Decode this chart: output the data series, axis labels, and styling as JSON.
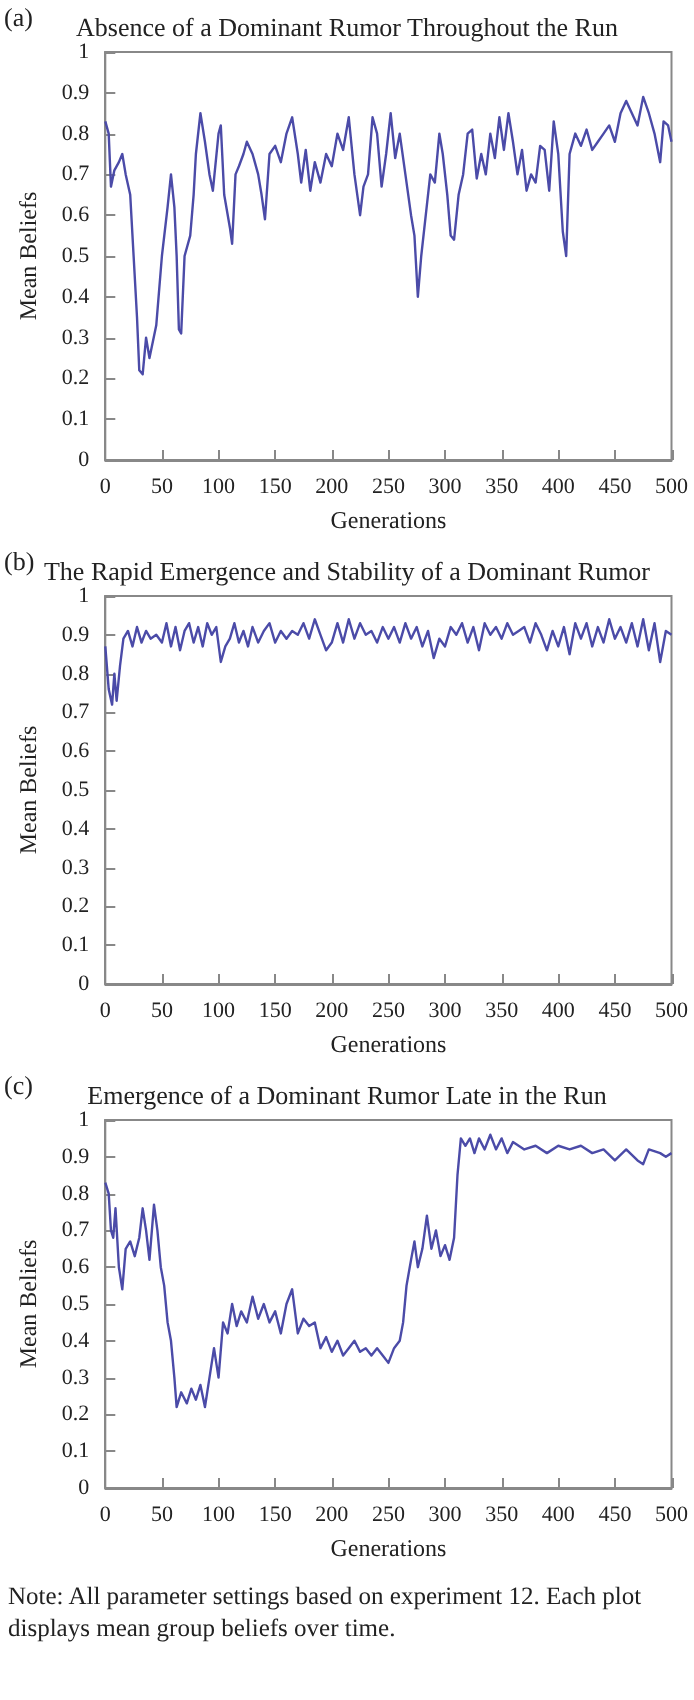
{
  "chart_data": [
    {
      "type": "line",
      "title": "Absence of a Dominant Rumor Throughout the Run",
      "xlabel": "Generations",
      "ylabel": "Mean Beliefs",
      "annotations": [
        "(a)"
      ],
      "xlim": [
        0,
        500
      ],
      "ylim": [
        0,
        1
      ],
      "xticks": [
        0,
        50,
        100,
        150,
        200,
        250,
        300,
        350,
        400,
        450,
        500
      ],
      "yticks": [
        0,
        0.1,
        0.2,
        0.3,
        0.4,
        0.5,
        0.6,
        0.7,
        0.8,
        0.9,
        1
      ],
      "grid": false,
      "series": [
        {
          "color": "#4b4ba8",
          "x": [
            0,
            3,
            5,
            8,
            12,
            15,
            18,
            22,
            25,
            28,
            30,
            33,
            36,
            39,
            45,
            50,
            55,
            58,
            61,
            63,
            65,
            67,
            70,
            75,
            78,
            80,
            84,
            88,
            92,
            95,
            100,
            102,
            105,
            110,
            112,
            115,
            118,
            122,
            125,
            130,
            135,
            138,
            141,
            145,
            150,
            155,
            160,
            165,
            170,
            173,
            177,
            181,
            185,
            190,
            195,
            200,
            205,
            210,
            215,
            220,
            225,
            228,
            232,
            236,
            240,
            244,
            248,
            252,
            256,
            260,
            265,
            270,
            273,
            276,
            279,
            283,
            287,
            291,
            295,
            298,
            302,
            305,
            308,
            312,
            316,
            320,
            324,
            328,
            332,
            336,
            340,
            344,
            348,
            352,
            356,
            360,
            364,
            368,
            372,
            376,
            380,
            384,
            388,
            392,
            396,
            400,
            404,
            407,
            410,
            415,
            420,
            425,
            430,
            435,
            440,
            445,
            450,
            455,
            460,
            465,
            470,
            475,
            480,
            485,
            490,
            493,
            497,
            500
          ],
          "values": [
            0.83,
            0.8,
            0.67,
            0.71,
            0.73,
            0.75,
            0.7,
            0.65,
            0.5,
            0.35,
            0.22,
            0.21,
            0.3,
            0.25,
            0.33,
            0.5,
            0.62,
            0.7,
            0.62,
            0.5,
            0.32,
            0.31,
            0.5,
            0.55,
            0.65,
            0.75,
            0.85,
            0.78,
            0.7,
            0.66,
            0.8,
            0.82,
            0.65,
            0.57,
            0.53,
            0.7,
            0.72,
            0.75,
            0.78,
            0.75,
            0.7,
            0.65,
            0.59,
            0.75,
            0.77,
            0.73,
            0.8,
            0.84,
            0.75,
            0.68,
            0.76,
            0.66,
            0.73,
            0.68,
            0.75,
            0.72,
            0.8,
            0.76,
            0.84,
            0.7,
            0.6,
            0.67,
            0.7,
            0.84,
            0.8,
            0.67,
            0.75,
            0.85,
            0.74,
            0.8,
            0.7,
            0.6,
            0.55,
            0.4,
            0.5,
            0.6,
            0.7,
            0.68,
            0.8,
            0.75,
            0.65,
            0.55,
            0.54,
            0.65,
            0.7,
            0.8,
            0.81,
            0.69,
            0.75,
            0.7,
            0.8,
            0.74,
            0.84,
            0.76,
            0.85,
            0.78,
            0.7,
            0.76,
            0.66,
            0.7,
            0.68,
            0.77,
            0.76,
            0.66,
            0.83,
            0.75,
            0.56,
            0.5,
            0.75,
            0.8,
            0.77,
            0.81,
            0.76,
            0.78,
            0.8,
            0.82,
            0.78,
            0.85,
            0.88,
            0.85,
            0.82,
            0.89,
            0.85,
            0.8,
            0.73,
            0.83,
            0.82,
            0.78
          ]
        }
      ]
    },
    {
      "type": "line",
      "title": "The Rapid Emergence and Stability of a Dominant Rumor",
      "xlabel": "Generations",
      "ylabel": "Mean Beliefs",
      "annotations": [
        "(b)"
      ],
      "xlim": [
        0,
        500
      ],
      "ylim": [
        0,
        1
      ],
      "xticks": [
        0,
        50,
        100,
        150,
        200,
        250,
        300,
        350,
        400,
        450,
        500
      ],
      "yticks": [
        0,
        0.1,
        0.2,
        0.3,
        0.4,
        0.5,
        0.6,
        0.7,
        0.8,
        0.9,
        1
      ],
      "grid": false,
      "series": [
        {
          "color": "#4b4ba8",
          "x": [
            0,
            3,
            6,
            8,
            10,
            13,
            16,
            20,
            24,
            28,
            32,
            36,
            40,
            45,
            50,
            54,
            58,
            62,
            66,
            70,
            74,
            78,
            82,
            86,
            90,
            94,
            98,
            102,
            106,
            110,
            114,
            118,
            122,
            126,
            130,
            135,
            140,
            145,
            150,
            155,
            160,
            165,
            170,
            175,
            180,
            185,
            190,
            195,
            200,
            205,
            210,
            215,
            220,
            225,
            230,
            235,
            240,
            245,
            250,
            255,
            260,
            265,
            270,
            275,
            280,
            285,
            290,
            295,
            300,
            305,
            310,
            315,
            320,
            325,
            330,
            335,
            340,
            345,
            350,
            355,
            360,
            365,
            370,
            375,
            380,
            385,
            390,
            395,
            400,
            405,
            410,
            415,
            420,
            425,
            430,
            435,
            440,
            445,
            450,
            455,
            460,
            465,
            470,
            475,
            480,
            485,
            490,
            495,
            500
          ],
          "values": [
            0.87,
            0.76,
            0.72,
            0.8,
            0.73,
            0.82,
            0.89,
            0.91,
            0.87,
            0.92,
            0.88,
            0.91,
            0.89,
            0.9,
            0.88,
            0.93,
            0.87,
            0.92,
            0.86,
            0.91,
            0.93,
            0.88,
            0.92,
            0.87,
            0.93,
            0.9,
            0.92,
            0.83,
            0.87,
            0.89,
            0.93,
            0.88,
            0.91,
            0.87,
            0.92,
            0.88,
            0.91,
            0.93,
            0.88,
            0.91,
            0.89,
            0.91,
            0.9,
            0.93,
            0.89,
            0.94,
            0.9,
            0.86,
            0.88,
            0.93,
            0.88,
            0.94,
            0.89,
            0.93,
            0.9,
            0.91,
            0.88,
            0.92,
            0.89,
            0.92,
            0.88,
            0.93,
            0.89,
            0.92,
            0.87,
            0.91,
            0.84,
            0.89,
            0.87,
            0.92,
            0.9,
            0.93,
            0.88,
            0.92,
            0.86,
            0.93,
            0.9,
            0.92,
            0.89,
            0.93,
            0.9,
            0.91,
            0.92,
            0.88,
            0.93,
            0.9,
            0.86,
            0.91,
            0.87,
            0.92,
            0.85,
            0.93,
            0.89,
            0.93,
            0.87,
            0.92,
            0.88,
            0.94,
            0.89,
            0.92,
            0.88,
            0.93,
            0.87,
            0.94,
            0.86,
            0.93,
            0.83,
            0.91,
            0.9
          ]
        }
      ]
    },
    {
      "type": "line",
      "title": "Emergence of a Dominant Rumor Late in the Run",
      "xlabel": "Generations",
      "ylabel": "Mean Beliefs",
      "annotations": [
        "(c)",
        "Note: All parameter settings based on experiment 12. Each plot displays mean group beliefs over time."
      ],
      "xlim": [
        0,
        500
      ],
      "ylim": [
        0,
        1
      ],
      "xticks": [
        0,
        50,
        100,
        150,
        200,
        250,
        300,
        350,
        400,
        450,
        500
      ],
      "yticks": [
        0,
        0.1,
        0.2,
        0.3,
        0.4,
        0.5,
        0.6,
        0.7,
        0.8,
        0.9,
        1
      ],
      "grid": false,
      "series": [
        {
          "color": "#4b4ba8",
          "x": [
            0,
            3,
            5,
            7,
            9,
            12,
            15,
            18,
            22,
            26,
            30,
            33,
            36,
            39,
            43,
            46,
            49,
            52,
            55,
            58,
            61,
            63,
            67,
            72,
            76,
            80,
            84,
            88,
            92,
            96,
            100,
            104,
            108,
            112,
            116,
            120,
            125,
            130,
            135,
            140,
            145,
            150,
            155,
            160,
            165,
            170,
            175,
            180,
            185,
            190,
            195,
            200,
            205,
            210,
            215,
            220,
            225,
            230,
            235,
            240,
            245,
            250,
            255,
            260,
            263,
            266,
            270,
            273,
            276,
            280,
            284,
            288,
            292,
            296,
            300,
            304,
            308,
            311,
            314,
            318,
            322,
            326,
            330,
            335,
            340,
            345,
            350,
            355,
            360,
            370,
            380,
            390,
            400,
            410,
            420,
            430,
            440,
            450,
            460,
            470,
            475,
            480,
            490,
            495,
            500
          ],
          "values": [
            0.83,
            0.8,
            0.7,
            0.68,
            0.76,
            0.6,
            0.54,
            0.65,
            0.67,
            0.63,
            0.68,
            0.76,
            0.7,
            0.62,
            0.77,
            0.7,
            0.6,
            0.55,
            0.45,
            0.4,
            0.3,
            0.22,
            0.26,
            0.23,
            0.27,
            0.24,
            0.28,
            0.22,
            0.3,
            0.38,
            0.3,
            0.45,
            0.42,
            0.5,
            0.44,
            0.48,
            0.45,
            0.52,
            0.46,
            0.5,
            0.45,
            0.48,
            0.42,
            0.5,
            0.54,
            0.42,
            0.46,
            0.44,
            0.45,
            0.38,
            0.41,
            0.37,
            0.4,
            0.36,
            0.38,
            0.4,
            0.37,
            0.38,
            0.36,
            0.38,
            0.36,
            0.34,
            0.38,
            0.4,
            0.45,
            0.55,
            0.62,
            0.67,
            0.6,
            0.65,
            0.74,
            0.65,
            0.7,
            0.63,
            0.66,
            0.62,
            0.68,
            0.85,
            0.95,
            0.93,
            0.95,
            0.91,
            0.95,
            0.92,
            0.96,
            0.92,
            0.95,
            0.91,
            0.94,
            0.92,
            0.93,
            0.91,
            0.93,
            0.92,
            0.93,
            0.91,
            0.92,
            0.89,
            0.92,
            0.89,
            0.88,
            0.92,
            0.91,
            0.9,
            0.91
          ]
        }
      ]
    }
  ]
}
